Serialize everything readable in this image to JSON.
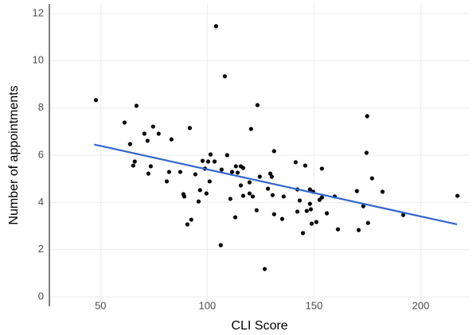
{
  "chart_data": {
    "type": "scatter",
    "x_label": "CLI Score",
    "y_label": "Number of appointments",
    "color": "#000000",
    "grid": true,
    "xlim": [
      26,
      223
    ],
    "ylim": [
      -0.4,
      12.4
    ],
    "xticks": [
      50,
      100,
      150,
      200
    ],
    "yticks": [
      0,
      2,
      4,
      6,
      8,
      10,
      12
    ],
    "x": [
      47.8,
      61.2,
      66.8,
      63.8,
      65.3,
      66,
      70.5,
      72,
      74.6,
      77.2,
      73.5,
      72.4,
      83.2,
      82.1,
      81,
      87.3,
      88.8,
      89.2,
      91.8,
      90.7,
      92.5,
      94.4,
      95.9,
      96.6,
      97.8,
      98.9,
      99.6,
      100.4,
      101.5,
      103.4,
      101.1,
      104.1,
      106.3,
      106.7,
      108.2,
      109.3,
      111.6,
      110.8,
      113.4,
      114.2,
      115.7,
      116.8,
      116.8,
      113.1,
      115.7,
      119.8,
      119.8,
      120.5,
      121.3,
      123.5,
      123.1,
      124.6,
      126.9,
      128.4,
      129.5,
      130.2,
      131.3,
      130.6,
      131.3,
      135.1,
      135.8,
      141.4,
      142.2,
      143.3,
      142.2,
      145.9,
      144.8,
      146.6,
      148.5,
      148.1,
      148.1,
      149.6,
      148.9,
      151.1,
      153.7,
      153.7,
      152.6,
      156,
      159.7,
      161.2,
      170.1,
      170.9,
      173.1,
      174.9,
      174.6,
      175.3,
      177.2,
      182.1,
      191.8,
      217.2
    ],
    "values": [
      8.33,
      7.38,
      8.09,
      6.47,
      5.56,
      5.73,
      6.91,
      6.61,
      7.21,
      6.91,
      5.53,
      5.22,
      6.67,
      5.29,
      4.89,
      5.29,
      4.35,
      4.25,
      7.15,
      3.07,
      3.27,
      5.19,
      4.04,
      4.52,
      5.76,
      5.43,
      4.38,
      5.73,
      6.03,
      5.73,
      4.89,
      11.46,
      2.19,
      5.39,
      9.34,
      6.0,
      5.29,
      4.15,
      5.53,
      5.26,
      5.53,
      5.46,
      4.28,
      3.37,
      4.72,
      4.85,
      4.38,
      7.11,
      4.25,
      8.12,
      3.67,
      5.09,
      1.18,
      4.58,
      5.22,
      5.09,
      6.17,
      4.31,
      3.5,
      3.3,
      4.25,
      5.7,
      4.55,
      4.08,
      3.61,
      5.56,
      2.7,
      3.64,
      3.71,
      4.55,
      3.94,
      4.45,
      3.1,
      3.17,
      5.43,
      4.21,
      4.11,
      3.54,
      4.25,
      2.86,
      4.48,
      2.83,
      3.84,
      7.65,
      6.1,
      3.13,
      5.02,
      4.45,
      3.47,
      4.28
    ],
    "trend": {
      "x": [
        47,
        217
      ],
      "values": [
        6.45,
        3.07
      ],
      "color": "#3366cc"
    }
  }
}
